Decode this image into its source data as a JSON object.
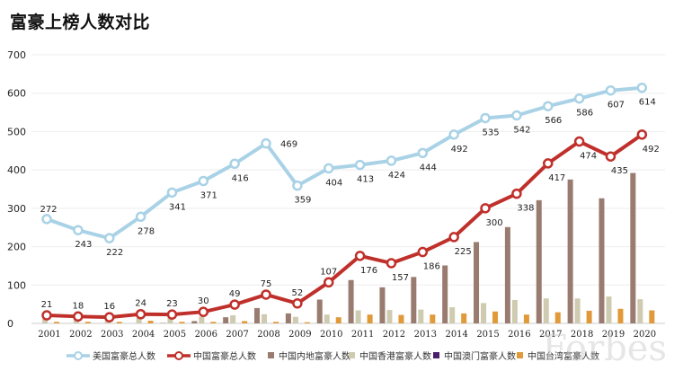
{
  "chart_data": {
    "type": "bar+line",
    "title": "富豪上榜人数对比",
    "categories": [
      "2001",
      "2002",
      "2003",
      "2004",
      "2005",
      "2006",
      "2007",
      "2008",
      "2009",
      "2010",
      "2011",
      "2012",
      "2013",
      "2014",
      "2015",
      "2016",
      "2017",
      "2018",
      "2019",
      "2020"
    ],
    "ylim": [
      0,
      700
    ],
    "yticks": [
      0,
      100,
      200,
      300,
      400,
      500,
      600,
      700
    ],
    "grid": true,
    "legend": "bottom",
    "lines": [
      {
        "name": "美国富豪总人数",
        "color": "#a9d2e6",
        "values": [
          272,
          243,
          222,
          278,
          341,
          371,
          416,
          469,
          359,
          404,
          413,
          424,
          444,
          492,
          535,
          542,
          566,
          586,
          607,
          614
        ]
      },
      {
        "name": "中国富豪总人数",
        "color": "#c0302b",
        "values": [
          21,
          18,
          16,
          24,
          23,
          30,
          49,
          75,
          52,
          107,
          176,
          157,
          186,
          225,
          300,
          338,
          417,
          474,
          435,
          492
        ]
      }
    ],
    "bars": [
      {
        "name": "中国内地富豪人数",
        "color": "#9a7b70",
        "values": [
          0,
          0,
          0,
          0,
          1,
          6,
          16,
          40,
          26,
          62,
          113,
          94,
          121,
          151,
          212,
          251,
          321,
          375,
          326,
          392
        ]
      },
      {
        "name": "中国香港富豪人数",
        "color": "#cfcbb0",
        "values": [
          12,
          12,
          11,
          14,
          15,
          18,
          21,
          24,
          17,
          23,
          34,
          35,
          36,
          42,
          53,
          61,
          65,
          65,
          70,
          63
        ]
      },
      {
        "name": "中国澳门富豪人数",
        "color": "#4b1f6b",
        "values": [
          0,
          0,
          0,
          0,
          0,
          0,
          0,
          0,
          0,
          0,
          0,
          0,
          0,
          0,
          0,
          0,
          0,
          0,
          0,
          0
        ]
      },
      {
        "name": "中国台湾富豪人数",
        "color": "#e09a3a",
        "values": [
          4,
          4,
          4,
          7,
          4,
          4,
          6,
          4,
          3,
          16,
          23,
          22,
          23,
          26,
          31,
          23,
          29,
          33,
          38,
          34
        ]
      }
    ]
  },
  "watermark": "Forbes"
}
